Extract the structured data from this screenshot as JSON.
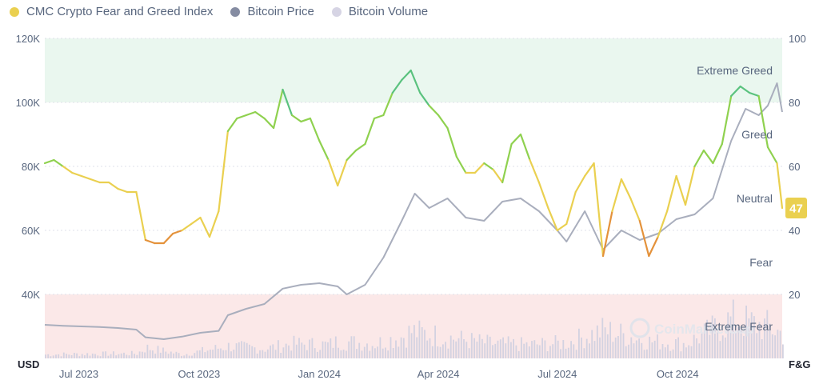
{
  "legend": {
    "items": [
      {
        "label": "CMC Crypto Fear and Greed Index",
        "color": "#ead050"
      },
      {
        "label": "Bitcoin Price",
        "color": "#858ca2"
      },
      {
        "label": "Bitcoin Volume",
        "color": "#d6d4e4"
      }
    ]
  },
  "colors": {
    "extreme_greed": "#5ac27e",
    "greed": "#8fd14f",
    "neutral": "#ead050",
    "fear": "#e4923b",
    "extreme_fear": "#ea3943",
    "price": "#a9aebd",
    "volume": "#d3d2e1",
    "greed_band": "#eaf7ef",
    "fear_band": "#fbe8e8",
    "badge": "#ead050"
  },
  "watermark": "CoinMarketCap",
  "chart_data": {
    "type": "line",
    "title": "",
    "x": {
      "start": "2023-06-05",
      "end": "2024-12-20",
      "ticks": [
        {
          "date": "2023-07-01",
          "label": "Jul 2023"
        },
        {
          "date": "2023-10-01",
          "label": "Oct 2023"
        },
        {
          "date": "2024-01-01",
          "label": "Jan 2024"
        },
        {
          "date": "2024-04-01",
          "label": "Apr 2024"
        },
        {
          "date": "2024-07-01",
          "label": "Jul 2024"
        },
        {
          "date": "2024-10-01",
          "label": "Oct 2024"
        }
      ]
    },
    "left_axis": {
      "unit": "USD",
      "ylim": [
        20000,
        120000
      ],
      "ticks": [
        {
          "value": 40000,
          "label": "40K"
        },
        {
          "value": 60000,
          "label": "60K"
        },
        {
          "value": 80000,
          "label": "80K"
        },
        {
          "value": 100000,
          "label": "100K"
        },
        {
          "value": 120000,
          "label": "120K"
        }
      ]
    },
    "right_axis": {
      "unit": "F&G",
      "ylim": [
        0,
        100
      ],
      "ticks": [
        {
          "value": 20,
          "label": "20"
        },
        {
          "value": 40,
          "label": "40"
        },
        {
          "value": 60,
          "label": "60"
        },
        {
          "value": 80,
          "label": "80"
        },
        {
          "value": 100,
          "label": "100"
        }
      ]
    },
    "zones": [
      {
        "label": "Extreme Greed",
        "from": 80,
        "to": 100
      },
      {
        "label": "Greed",
        "from": 60,
        "to": 80
      },
      {
        "label": "Neutral",
        "from": 40,
        "to": 60
      },
      {
        "label": "Fear",
        "from": 20,
        "to": 40
      },
      {
        "label": "Extreme Fear",
        "from": 0,
        "to": 20
      }
    ],
    "current_value": 47,
    "series": [
      {
        "name": "CMC Crypto Fear and Greed Index",
        "axis": "right",
        "points": [
          [
            "2023-06-05",
            61
          ],
          [
            "2023-06-12",
            62
          ],
          [
            "2023-06-19",
            60
          ],
          [
            "2023-06-26",
            58
          ],
          [
            "2023-07-03",
            57
          ],
          [
            "2023-07-10",
            56
          ],
          [
            "2023-07-17",
            55
          ],
          [
            "2023-07-24",
            55
          ],
          [
            "2023-07-31",
            53
          ],
          [
            "2023-08-07",
            52
          ],
          [
            "2023-08-14",
            52
          ],
          [
            "2023-08-21",
            37
          ],
          [
            "2023-08-28",
            36
          ],
          [
            "2023-09-04",
            36
          ],
          [
            "2023-09-11",
            39
          ],
          [
            "2023-09-18",
            40
          ],
          [
            "2023-09-25",
            42
          ],
          [
            "2023-10-02",
            44
          ],
          [
            "2023-10-09",
            38
          ],
          [
            "2023-10-16",
            46
          ],
          [
            "2023-10-23",
            71
          ],
          [
            "2023-10-30",
            75
          ],
          [
            "2023-11-06",
            76
          ],
          [
            "2023-11-13",
            77
          ],
          [
            "2023-11-20",
            75
          ],
          [
            "2023-11-27",
            72
          ],
          [
            "2023-12-04",
            84
          ],
          [
            "2023-12-11",
            76
          ],
          [
            "2023-12-18",
            74
          ],
          [
            "2023-12-25",
            75
          ],
          [
            "2024-01-01",
            68
          ],
          [
            "2024-01-08",
            62
          ],
          [
            "2024-01-15",
            54
          ],
          [
            "2024-01-22",
            62
          ],
          [
            "2024-01-29",
            65
          ],
          [
            "2024-02-05",
            67
          ],
          [
            "2024-02-12",
            75
          ],
          [
            "2024-02-19",
            76
          ],
          [
            "2024-02-26",
            83
          ],
          [
            "2024-03-04",
            87
          ],
          [
            "2024-03-11",
            90
          ],
          [
            "2024-03-18",
            83
          ],
          [
            "2024-03-25",
            79
          ],
          [
            "2024-04-01",
            76
          ],
          [
            "2024-04-08",
            72
          ],
          [
            "2024-04-15",
            63
          ],
          [
            "2024-04-22",
            58
          ],
          [
            "2024-04-29",
            58
          ],
          [
            "2024-05-06",
            61
          ],
          [
            "2024-05-13",
            59
          ],
          [
            "2024-05-20",
            55
          ],
          [
            "2024-05-27",
            67
          ],
          [
            "2024-06-03",
            70
          ],
          [
            "2024-06-10",
            62
          ],
          [
            "2024-06-17",
            55
          ],
          [
            "2024-06-24",
            47
          ],
          [
            "2024-07-01",
            40
          ],
          [
            "2024-07-08",
            42
          ],
          [
            "2024-07-15",
            52
          ],
          [
            "2024-07-22",
            57
          ],
          [
            "2024-07-29",
            61
          ],
          [
            "2024-08-05",
            32
          ],
          [
            "2024-08-12",
            46
          ],
          [
            "2024-08-19",
            56
          ],
          [
            "2024-08-26",
            50
          ],
          [
            "2024-09-02",
            43
          ],
          [
            "2024-09-09",
            32
          ],
          [
            "2024-09-16",
            38
          ],
          [
            "2024-09-23",
            46
          ],
          [
            "2024-09-30",
            57
          ],
          [
            "2024-10-07",
            48
          ],
          [
            "2024-10-14",
            60
          ],
          [
            "2024-10-21",
            65
          ],
          [
            "2024-10-28",
            61
          ],
          [
            "2024-11-04",
            67
          ],
          [
            "2024-11-11",
            82
          ],
          [
            "2024-11-18",
            85
          ],
          [
            "2024-11-25",
            83
          ],
          [
            "2024-12-02",
            82
          ],
          [
            "2024-12-09",
            66
          ],
          [
            "2024-12-16",
            61
          ],
          [
            "2024-12-20",
            47
          ]
        ]
      },
      {
        "name": "Bitcoin Price",
        "axis": "left",
        "points": [
          [
            "2023-06-05",
            30500
          ],
          [
            "2023-06-19",
            30200
          ],
          [
            "2023-07-03",
            30000
          ],
          [
            "2023-07-17",
            29800
          ],
          [
            "2023-07-31",
            29500
          ],
          [
            "2023-08-14",
            29000
          ],
          [
            "2023-08-21",
            26600
          ],
          [
            "2023-09-04",
            26000
          ],
          [
            "2023-09-18",
            26800
          ],
          [
            "2023-10-02",
            28000
          ],
          [
            "2023-10-16",
            28600
          ],
          [
            "2023-10-23",
            33500
          ],
          [
            "2023-11-06",
            35500
          ],
          [
            "2023-11-20",
            37000
          ],
          [
            "2023-12-04",
            41800
          ],
          [
            "2023-12-18",
            43000
          ],
          [
            "2024-01-01",
            43500
          ],
          [
            "2024-01-15",
            42500
          ],
          [
            "2024-01-22",
            40000
          ],
          [
            "2024-02-05",
            43000
          ],
          [
            "2024-02-19",
            51500
          ],
          [
            "2024-03-04",
            63000
          ],
          [
            "2024-03-14",
            71500
          ],
          [
            "2024-03-25",
            67000
          ],
          [
            "2024-04-08",
            70000
          ],
          [
            "2024-04-22",
            64000
          ],
          [
            "2024-05-06",
            63000
          ],
          [
            "2024-05-20",
            69000
          ],
          [
            "2024-06-03",
            70000
          ],
          [
            "2024-06-17",
            66000
          ],
          [
            "2024-07-01",
            60000
          ],
          [
            "2024-07-08",
            56500
          ],
          [
            "2024-07-22",
            66000
          ],
          [
            "2024-08-05",
            54000
          ],
          [
            "2024-08-19",
            60000
          ],
          [
            "2024-09-02",
            57000
          ],
          [
            "2024-09-16",
            59000
          ],
          [
            "2024-09-30",
            63500
          ],
          [
            "2024-10-14",
            65000
          ],
          [
            "2024-10-28",
            70000
          ],
          [
            "2024-11-11",
            88000
          ],
          [
            "2024-11-22",
            98000
          ],
          [
            "2024-12-02",
            96000
          ],
          [
            "2024-12-09",
            99000
          ],
          [
            "2024-12-16",
            106000
          ],
          [
            "2024-12-20",
            97000
          ]
        ]
      },
      {
        "name": "Bitcoin Volume",
        "axis": "volume",
        "points": [
          [
            "2023-06-05",
            0.08
          ],
          [
            "2023-07-03",
            0.09
          ],
          [
            "2023-08-14",
            0.1
          ],
          [
            "2023-08-21",
            0.22
          ],
          [
            "2023-09-18",
            0.08
          ],
          [
            "2023-10-23",
            0.25
          ],
          [
            "2023-11-20",
            0.2
          ],
          [
            "2023-12-11",
            0.3
          ],
          [
            "2024-01-08",
            0.28
          ],
          [
            "2024-01-15",
            0.35
          ],
          [
            "2024-02-12",
            0.3
          ],
          [
            "2024-03-04",
            0.45
          ],
          [
            "2024-03-11",
            0.55
          ],
          [
            "2024-04-15",
            0.4
          ],
          [
            "2024-05-13",
            0.3
          ],
          [
            "2024-06-10",
            0.28
          ],
          [
            "2024-07-08",
            0.32
          ],
          [
            "2024-08-05",
            0.58
          ],
          [
            "2024-09-09",
            0.35
          ],
          [
            "2024-10-07",
            0.3
          ],
          [
            "2024-11-11",
            0.8
          ],
          [
            "2024-11-25",
            0.72
          ],
          [
            "2024-12-09",
            0.65
          ],
          [
            "2024-12-20",
            0.5
          ]
        ]
      }
    ]
  }
}
